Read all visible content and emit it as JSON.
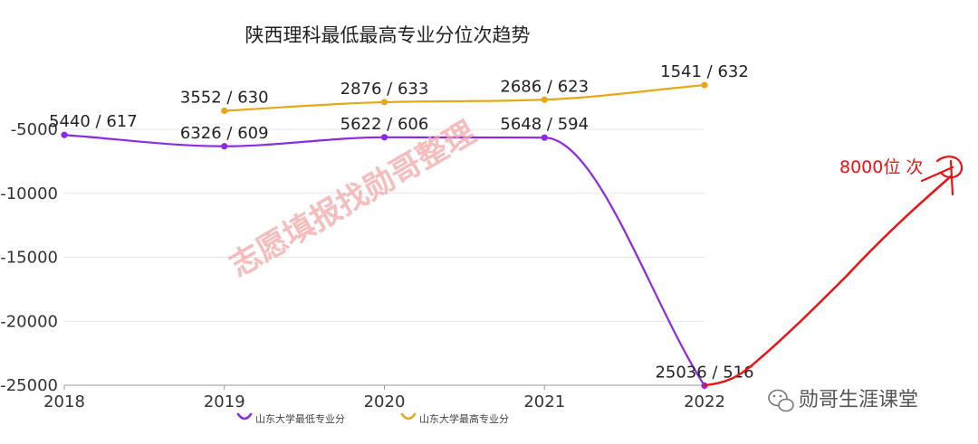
{
  "chart_data": {
    "type": "line",
    "title": "陕西理科最低最高专业分位次趋势",
    "categories": [
      "2018",
      "2019",
      "2020",
      "2021",
      "2022"
    ],
    "ylim": [
      -25000,
      -5000
    ],
    "y_ticks": [
      -5000,
      -10000,
      -15000,
      -20000,
      -25000
    ],
    "y_tick_labels": [
      "-5000",
      "-10000",
      "-15000",
      "-20000",
      "-25000"
    ],
    "grid": true,
    "legend_position": "bottom",
    "series": [
      {
        "name": "山东大学最低专业分",
        "color": "#8a2be2",
        "values": [
          -5440,
          -6326,
          -5622,
          -5648,
          -25036
        ],
        "labels": [
          "5440 / 617",
          "6326 / 609",
          "5622 / 606",
          "5648 / 594",
          "25036 / 516"
        ]
      },
      {
        "name": "山东大学最高专业分",
        "color": "#e6a817",
        "values": [
          null,
          -3552,
          -2876,
          -2686,
          -1541
        ],
        "labels": [
          null,
          "3552 / 630",
          "2876 / 633",
          "2686 / 623",
          "1541 / 632"
        ]
      }
    ],
    "annotation": "8000位 次",
    "watermark": "志愿填报找勋哥整理"
  },
  "brand": {
    "name": "勋哥生涯课堂",
    "icon": "wechat-icon"
  },
  "colors": {
    "annotation": "#ee1111",
    "grid": "#e6e6e6",
    "axis": "#999999"
  }
}
